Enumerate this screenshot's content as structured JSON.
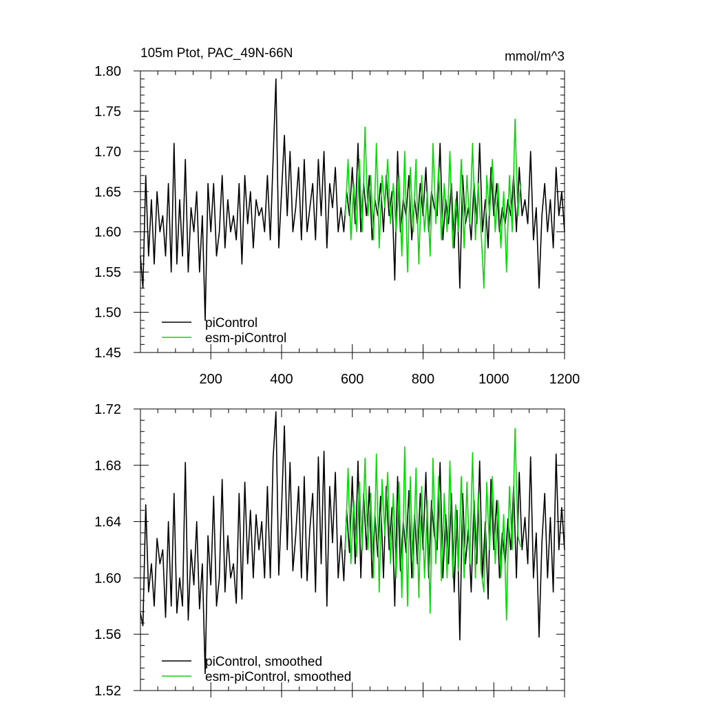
{
  "figure": {
    "title_left": "105m Ptot, PAC_49N-66N",
    "title_right": "mmol/m^3"
  },
  "chart_data": [
    {
      "type": "line",
      "panel": "top",
      "xlim": [
        1,
        1200
      ],
      "ylim": [
        1.45,
        1.8
      ],
      "yticks": [
        "1.45",
        "1.50",
        "1.55",
        "1.60",
        "1.65",
        "1.70",
        "1.75",
        "1.80"
      ],
      "xticks": [
        "200",
        "400",
        "600",
        "800",
        "1000",
        "1200"
      ],
      "legend_position": "bottom-left",
      "series": [
        {
          "name": "piControl",
          "color": "#000000",
          "x": [
            1,
            8,
            16,
            24,
            32,
            40,
            48,
            56,
            64,
            72,
            80,
            88,
            96,
            104,
            112,
            120,
            128,
            136,
            144,
            152,
            160,
            168,
            176,
            184,
            192,
            200,
            208,
            216,
            224,
            232,
            240,
            248,
            256,
            264,
            272,
            280,
            288,
            296,
            304,
            312,
            320,
            328,
            336,
            344,
            352,
            360,
            368,
            376,
            384,
            392,
            400,
            408,
            416,
            424,
            432,
            440,
            448,
            456,
            464,
            472,
            480,
            488,
            496,
            504,
            512,
            520,
            528,
            536,
            544,
            552,
            560,
            568,
            576,
            584,
            592,
            600,
            608,
            616,
            624,
            632,
            640,
            648,
            656,
            664,
            672,
            680,
            688,
            696,
            704,
            712,
            720,
            728,
            736,
            744,
            752,
            760,
            768,
            776,
            784,
            792,
            800,
            808,
            816,
            824,
            832,
            840,
            848,
            856,
            864,
            872,
            880,
            888,
            896,
            904,
            912,
            920,
            928,
            936,
            944,
            952,
            960,
            968,
            976,
            984,
            992,
            1000,
            1008,
            1016,
            1024,
            1032,
            1040,
            1048,
            1056,
            1064,
            1072,
            1080,
            1088,
            1096,
            1104,
            1112,
            1120,
            1128,
            1136,
            1144,
            1152,
            1160,
            1168,
            1176,
            1184,
            1192,
            1200
          ],
          "values": [
            1.57,
            1.53,
            1.67,
            1.57,
            1.64,
            1.56,
            1.65,
            1.6,
            1.62,
            1.57,
            1.66,
            1.55,
            1.71,
            1.56,
            1.64,
            1.57,
            1.69,
            1.55,
            1.63,
            1.6,
            1.65,
            1.55,
            1.62,
            1.49,
            1.66,
            1.6,
            1.66,
            1.57,
            1.6,
            1.67,
            1.58,
            1.64,
            1.6,
            1.62,
            1.59,
            1.66,
            1.56,
            1.67,
            1.61,
            1.65,
            1.58,
            1.64,
            1.62,
            1.63,
            1.6,
            1.67,
            1.59,
            1.69,
            1.79,
            1.58,
            1.65,
            1.72,
            1.62,
            1.7,
            1.6,
            1.63,
            1.68,
            1.59,
            1.69,
            1.6,
            1.63,
            1.66,
            1.59,
            1.69,
            1.62,
            1.7,
            1.58,
            1.66,
            1.63,
            1.68,
            1.6,
            1.63,
            1.6,
            1.65,
            1.62,
            1.68,
            1.61,
            1.71,
            1.6,
            1.66,
            1.62,
            1.67,
            1.59,
            1.64,
            1.62,
            1.66,
            1.6,
            1.67,
            1.62,
            1.65,
            1.54,
            1.7,
            1.6,
            1.64,
            1.62,
            1.67,
            1.59,
            1.64,
            1.61,
            1.66,
            1.62,
            1.68,
            1.6,
            1.65,
            1.63,
            1.62,
            1.71,
            1.59,
            1.64,
            1.61,
            1.66,
            1.58,
            1.65,
            1.53,
            1.67,
            1.61,
            1.63,
            1.59,
            1.66,
            1.61,
            1.71,
            1.6,
            1.64,
            1.58,
            1.68,
            1.62,
            1.66,
            1.6,
            1.63,
            1.61,
            1.64,
            1.62,
            1.67,
            1.6,
            1.68,
            1.62,
            1.64,
            1.61,
            1.7,
            1.59,
            1.63,
            1.53,
            1.62,
            1.66,
            1.6,
            1.64,
            1.58,
            1.68,
            1.62,
            1.65,
            1.6
          ]
        },
        {
          "name": "esm-piControl",
          "color": "#00dd00",
          "x": [
            580,
            588,
            596,
            604,
            612,
            620,
            628,
            636,
            644,
            652,
            660,
            668,
            676,
            684,
            692,
            700,
            708,
            716,
            724,
            732,
            740,
            748,
            756,
            764,
            772,
            780,
            788,
            796,
            804,
            812,
            820,
            828,
            836,
            844,
            852,
            860,
            868,
            876,
            884,
            892,
            900,
            908,
            916,
            924,
            932,
            940,
            948,
            956,
            964,
            972,
            980,
            988,
            996,
            1004,
            1012,
            1020,
            1028,
            1036,
            1044,
            1052,
            1060,
            1068,
            1076
          ],
          "values": [
            1.62,
            1.69,
            1.59,
            1.66,
            1.6,
            1.69,
            1.6,
            1.73,
            1.62,
            1.67,
            1.59,
            1.71,
            1.58,
            1.67,
            1.63,
            1.69,
            1.61,
            1.66,
            1.6,
            1.67,
            1.57,
            1.7,
            1.55,
            1.68,
            1.6,
            1.69,
            1.56,
            1.67,
            1.6,
            1.65,
            1.57,
            1.71,
            1.61,
            1.68,
            1.59,
            1.66,
            1.6,
            1.7,
            1.58,
            1.64,
            1.6,
            1.69,
            1.58,
            1.67,
            1.61,
            1.71,
            1.59,
            1.66,
            1.6,
            1.53,
            1.67,
            1.62,
            1.69,
            1.6,
            1.66,
            1.58,
            1.65,
            1.55,
            1.67,
            1.6,
            1.74,
            1.62,
            1.66
          ]
        }
      ]
    },
    {
      "type": "line",
      "panel": "bottom",
      "xlim": [
        1,
        1200
      ],
      "ylim": [
        1.52,
        1.72
      ],
      "yticks": [
        "1.52",
        "1.56",
        "1.60",
        "1.64",
        "1.68",
        "1.72"
      ],
      "legend_position": "bottom-left",
      "series": [
        {
          "name": "piControl, smoothed",
          "color": "#000000",
          "x": [
            1,
            8,
            16,
            24,
            32,
            40,
            48,
            56,
            64,
            72,
            80,
            88,
            96,
            104,
            112,
            120,
            128,
            136,
            144,
            152,
            160,
            168,
            176,
            184,
            192,
            200,
            208,
            216,
            224,
            232,
            240,
            248,
            256,
            264,
            272,
            280,
            288,
            296,
            304,
            312,
            320,
            328,
            336,
            344,
            352,
            360,
            368,
            376,
            384,
            392,
            400,
            408,
            416,
            424,
            432,
            440,
            448,
            456,
            464,
            472,
            480,
            488,
            496,
            504,
            512,
            520,
            528,
            536,
            544,
            552,
            560,
            568,
            576,
            584,
            592,
            600,
            608,
            616,
            624,
            632,
            640,
            648,
            656,
            664,
            672,
            680,
            688,
            696,
            704,
            712,
            720,
            728,
            736,
            744,
            752,
            760,
            768,
            776,
            784,
            792,
            800,
            808,
            816,
            824,
            832,
            840,
            848,
            856,
            864,
            872,
            880,
            888,
            896,
            904,
            912,
            920,
            928,
            936,
            944,
            952,
            960,
            968,
            976,
            984,
            992,
            1000,
            1008,
            1016,
            1024,
            1032,
            1040,
            1048,
            1056,
            1064,
            1072,
            1080,
            1088,
            1096,
            1104,
            1112,
            1120,
            1128,
            1136,
            1144,
            1152,
            1160,
            1168,
            1176,
            1184,
            1192,
            1200
          ],
          "values": [
            1.575,
            1.566,
            1.652,
            1.59,
            1.61,
            1.58,
            1.628,
            1.61,
            1.62,
            1.572,
            1.64,
            1.58,
            1.66,
            1.575,
            1.6,
            1.58,
            1.682,
            1.57,
            1.62,
            1.595,
            1.64,
            1.578,
            1.61,
            1.532,
            1.63,
            1.595,
            1.658,
            1.58,
            1.6,
            1.67,
            1.59,
            1.63,
            1.6,
            1.61,
            1.582,
            1.66,
            1.585,
            1.668,
            1.61,
            1.648,
            1.6,
            1.645,
            1.62,
            1.64,
            1.6,
            1.665,
            1.6,
            1.685,
            1.718,
            1.602,
            1.65,
            1.708,
            1.62,
            1.682,
            1.605,
            1.63,
            1.665,
            1.6,
            1.672,
            1.598,
            1.635,
            1.66,
            1.59,
            1.686,
            1.61,
            1.69,
            1.58,
            1.665,
            1.625,
            1.675,
            1.6,
            1.63,
            1.598,
            1.648,
            1.618,
            1.672,
            1.61,
            1.683,
            1.6,
            1.66,
            1.62,
            1.665,
            1.6,
            1.645,
            1.615,
            1.658,
            1.6,
            1.665,
            1.62,
            1.65,
            1.58,
            1.672,
            1.605,
            1.64,
            1.618,
            1.662,
            1.6,
            1.645,
            1.61,
            1.66,
            1.62,
            1.675,
            1.6,
            1.655,
            1.63,
            1.62,
            1.682,
            1.6,
            1.645,
            1.61,
            1.66,
            1.59,
            1.648,
            1.556,
            1.66,
            1.61,
            1.635,
            1.59,
            1.655,
            1.61,
            1.683,
            1.6,
            1.64,
            1.585,
            1.67,
            1.62,
            1.655,
            1.6,
            1.632,
            1.61,
            1.642,
            1.62,
            1.665,
            1.6,
            1.675,
            1.62,
            1.643,
            1.61,
            1.686,
            1.6,
            1.632,
            1.558,
            1.625,
            1.66,
            1.6,
            1.643,
            1.59,
            1.688,
            1.62,
            1.65,
            1.62
          ]
        },
        {
          "name": "esm-piControl, smoothed",
          "color": "#00dd00",
          "x": [
            580,
            588,
            596,
            604,
            612,
            620,
            628,
            636,
            644,
            652,
            660,
            668,
            676,
            684,
            692,
            700,
            708,
            716,
            724,
            732,
            740,
            748,
            756,
            764,
            772,
            780,
            788,
            796,
            804,
            812,
            820,
            828,
            836,
            844,
            852,
            860,
            868,
            876,
            884,
            892,
            900,
            908,
            916,
            924,
            932,
            940,
            948,
            956,
            964,
            972,
            980,
            988,
            996,
            1004,
            1012,
            1020,
            1028,
            1036,
            1044,
            1052,
            1060,
            1068,
            1076
          ],
          "values": [
            1.62,
            1.678,
            1.61,
            1.655,
            1.615,
            1.668,
            1.62,
            1.685,
            1.62,
            1.66,
            1.6,
            1.688,
            1.59,
            1.67,
            1.63,
            1.675,
            1.61,
            1.66,
            1.6,
            1.668,
            1.586,
            1.693,
            1.58,
            1.672,
            1.6,
            1.678,
            1.586,
            1.665,
            1.6,
            1.655,
            1.575,
            1.685,
            1.61,
            1.672,
            1.598,
            1.66,
            1.6,
            1.683,
            1.6,
            1.652,
            1.605,
            1.672,
            1.6,
            1.668,
            1.61,
            1.689,
            1.6,
            1.66,
            1.605,
            1.59,
            1.668,
            1.62,
            1.672,
            1.61,
            1.655,
            1.6,
            1.645,
            1.57,
            1.665,
            1.62,
            1.706,
            1.63,
            1.622
          ]
        }
      ]
    }
  ]
}
